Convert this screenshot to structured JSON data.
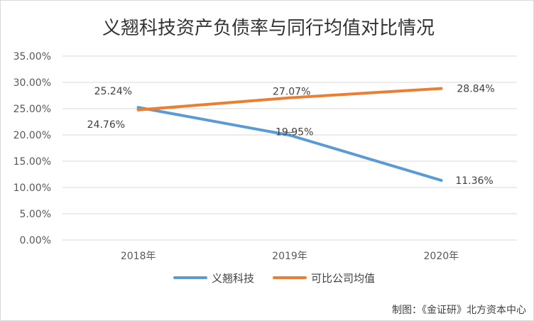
{
  "chart_data": {
    "type": "line",
    "title": "义翘科技资产负债率与同行均值对比情况",
    "xlabel": "",
    "ylabel": "",
    "categories": [
      "2018年",
      "2019年",
      "2020年"
    ],
    "ylim": [
      0,
      35
    ],
    "yticks": [
      "35.00%",
      "30.00%",
      "25.00%",
      "20.00%",
      "15.00%",
      "10.00%",
      "5.00%",
      "0.00%"
    ],
    "ytick_values": [
      35,
      30,
      25,
      20,
      15,
      10,
      5,
      0
    ],
    "grid": true,
    "legend_position": "bottom",
    "series": [
      {
        "name": "义翘科技",
        "color": "#5B9BD5",
        "values": [
          25.24,
          19.95,
          11.36
        ],
        "labels": [
          "25.24%",
          "19.95%",
          "11.36%"
        ]
      },
      {
        "name": "可比公司均值",
        "color": "#ED7D31",
        "values": [
          24.76,
          27.07,
          28.84
        ],
        "labels": [
          "24.76%",
          "27.07%",
          "28.84%"
        ]
      }
    ]
  },
  "source": "制图：《金证研》北方资本中心"
}
